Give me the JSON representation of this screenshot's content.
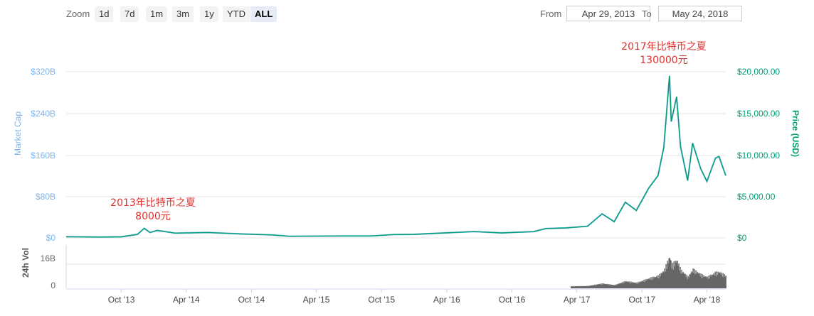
{
  "toolbar": {
    "zoom_label": "Zoom",
    "zoom_buttons": [
      "1d",
      "7d",
      "1m",
      "3m",
      "1y",
      "YTD",
      "ALL"
    ],
    "active_zoom": "ALL",
    "from_label": "From",
    "from_value": "Apr 29, 2013",
    "to_label": "To",
    "to_value": "May 24, 2018"
  },
  "colors": {
    "market_cap": "#7cb5ec",
    "price": "#009e73",
    "volume": "#666666",
    "annotation": "#e0312c",
    "grid": "#e6e6e6"
  },
  "chart_data": {
    "type": "line",
    "x_type": "date",
    "x_ticks": [
      "Oct '13",
      "Apr '14",
      "Oct '14",
      "Apr '15",
      "Oct '15",
      "Apr '16",
      "Oct '16",
      "Apr '17",
      "Oct '17",
      "Apr '18"
    ],
    "y_left": {
      "label": "Market Cap",
      "ticks": [
        "$0",
        "$80B",
        "$160B",
        "$240B",
        "$320B"
      ],
      "range": [
        0,
        320
      ]
    },
    "y_right": {
      "label": "Price (USD)",
      "ticks": [
        "$0",
        "$5,000.00",
        "$10,000.00",
        "$15,000.00",
        "$20,000.00"
      ],
      "range": [
        0,
        20000
      ]
    },
    "y_volume": {
      "label": "24h Vol",
      "ticks": [
        "0",
        "16B"
      ]
    },
    "grid": true,
    "series": [
      {
        "name": "Price (USD)",
        "points": [
          [
            "2013-04-29",
            140
          ],
          [
            "2013-08-01",
            100
          ],
          [
            "2013-10-01",
            125
          ],
          [
            "2013-11-15",
            420
          ],
          [
            "2013-12-04",
            1150
          ],
          [
            "2013-12-20",
            650
          ],
          [
            "2014-01-10",
            900
          ],
          [
            "2014-03-01",
            570
          ],
          [
            "2014-06-01",
            650
          ],
          [
            "2014-09-01",
            480
          ],
          [
            "2014-12-01",
            350
          ],
          [
            "2015-01-15",
            200
          ],
          [
            "2015-06-01",
            230
          ],
          [
            "2015-09-01",
            235
          ],
          [
            "2015-11-04",
            400
          ],
          [
            "2016-01-01",
            430
          ],
          [
            "2016-06-17",
            760
          ],
          [
            "2016-09-01",
            600
          ],
          [
            "2016-12-01",
            750
          ],
          [
            "2017-01-04",
            1130
          ],
          [
            "2017-03-01",
            1200
          ],
          [
            "2017-05-01",
            1400
          ],
          [
            "2017-06-11",
            2900
          ],
          [
            "2017-07-15",
            1950
          ],
          [
            "2017-08-15",
            4300
          ],
          [
            "2017-09-15",
            3300
          ],
          [
            "2017-10-20",
            6000
          ],
          [
            "2017-11-15",
            7500
          ],
          [
            "2017-12-01",
            10900
          ],
          [
            "2017-12-17",
            19500
          ],
          [
            "2017-12-22",
            14000
          ],
          [
            "2018-01-06",
            17000
          ],
          [
            "2018-01-17",
            11000
          ],
          [
            "2018-02-06",
            6900
          ],
          [
            "2018-02-20",
            11400
          ],
          [
            "2018-03-15",
            8300
          ],
          [
            "2018-04-01",
            6800
          ],
          [
            "2018-04-25",
            9600
          ],
          [
            "2018-05-05",
            9800
          ],
          [
            "2018-05-24",
            7500
          ]
        ]
      },
      {
        "name": "Market Cap"
      },
      {
        "name": "24h Vol"
      }
    ],
    "annotations": [
      {
        "date": "2013-12-04",
        "lines": [
          "2013年比特币之夏",
          "8000元"
        ]
      },
      {
        "date": "2017-12-17",
        "lines": [
          "2017年比特币之夏",
          "130000元"
        ]
      }
    ]
  }
}
